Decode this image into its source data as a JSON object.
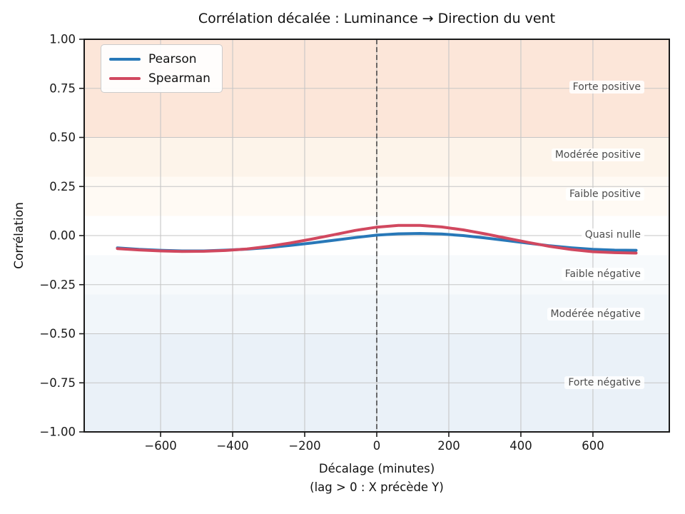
{
  "chart_data": {
    "type": "line",
    "title": "Corrélation décalée : Luminance → Direction du vent",
    "xlabel": "Décalage (minutes)",
    "xlabel_note": "(lag > 0 : X précède Y)",
    "ylabel": "Corrélation",
    "xlim": [
      -812,
      812
    ],
    "ylim": [
      -1.0,
      1.0
    ],
    "grid": true,
    "legend_position": "upper left",
    "x_ticks": [
      -600,
      -400,
      -200,
      0,
      200,
      400,
      600
    ],
    "x_tick_labels": [
      "−600",
      "−400",
      "−200",
      "0",
      "200",
      "400",
      "600"
    ],
    "y_ticks": [
      1.0,
      0.75,
      0.5,
      0.25,
      0.0,
      -0.25,
      -0.5,
      -0.75,
      -1.0
    ],
    "y_tick_labels": [
      "1.00",
      "0.75",
      "0.50",
      "0.25",
      "0.00",
      "−0.25",
      "−0.50",
      "−0.75",
      "−1.00"
    ],
    "x": [
      -720,
      -660,
      -600,
      -540,
      -480,
      -420,
      -360,
      -300,
      -240,
      -180,
      -120,
      -60,
      0,
      60,
      120,
      180,
      240,
      300,
      360,
      420,
      480,
      540,
      600,
      660,
      720
    ],
    "series": [
      {
        "name": "Pearson",
        "color": "#2878b8",
        "values": [
          -0.063,
          -0.07,
          -0.075,
          -0.078,
          -0.078,
          -0.074,
          -0.069,
          -0.061,
          -0.05,
          -0.038,
          -0.024,
          -0.01,
          0.002,
          0.009,
          0.011,
          0.008,
          0.0,
          -0.012,
          -0.025,
          -0.039,
          -0.052,
          -0.062,
          -0.07,
          -0.074,
          -0.075
        ]
      },
      {
        "name": "Spearman",
        "color": "#d1485f",
        "values": [
          -0.066,
          -0.073,
          -0.078,
          -0.081,
          -0.08,
          -0.076,
          -0.068,
          -0.055,
          -0.038,
          -0.018,
          0.004,
          0.026,
          0.043,
          0.052,
          0.052,
          0.044,
          0.029,
          0.009,
          -0.013,
          -0.035,
          -0.055,
          -0.071,
          -0.082,
          -0.087,
          -0.089
        ]
      }
    ],
    "vline": {
      "x": 0,
      "style": "dashed",
      "color": "#4a4a4a"
    },
    "zones": [
      {
        "label": "Forte positive",
        "from": 0.5,
        "to": 1.0,
        "label_y": 0.755,
        "color": "#fce6d9"
      },
      {
        "label": "Modérée positive",
        "from": 0.3,
        "to": 0.5,
        "label_y": 0.41,
        "color": "#fdf4ea"
      },
      {
        "label": "Faible positive",
        "from": 0.1,
        "to": 0.3,
        "label_y": 0.21,
        "color": "#fffaf4"
      },
      {
        "label": "Quasi nulle",
        "from": -0.1,
        "to": 0.1,
        "label_y": 0.005,
        "color": "#ffffff"
      },
      {
        "label": "Faible négative",
        "from": -0.3,
        "to": -0.1,
        "label_y": -0.195,
        "color": "#f7fafc"
      },
      {
        "label": "Modérée négative",
        "from": -0.5,
        "to": -0.3,
        "label_y": -0.4,
        "color": "#f1f6fa"
      },
      {
        "label": "Forte négative",
        "from": -1.0,
        "to": -0.5,
        "label_y": -0.75,
        "color": "#eaf1f8"
      }
    ],
    "colors": {
      "grid": "#c6c6c6",
      "frame": "#1a1a1a"
    }
  }
}
